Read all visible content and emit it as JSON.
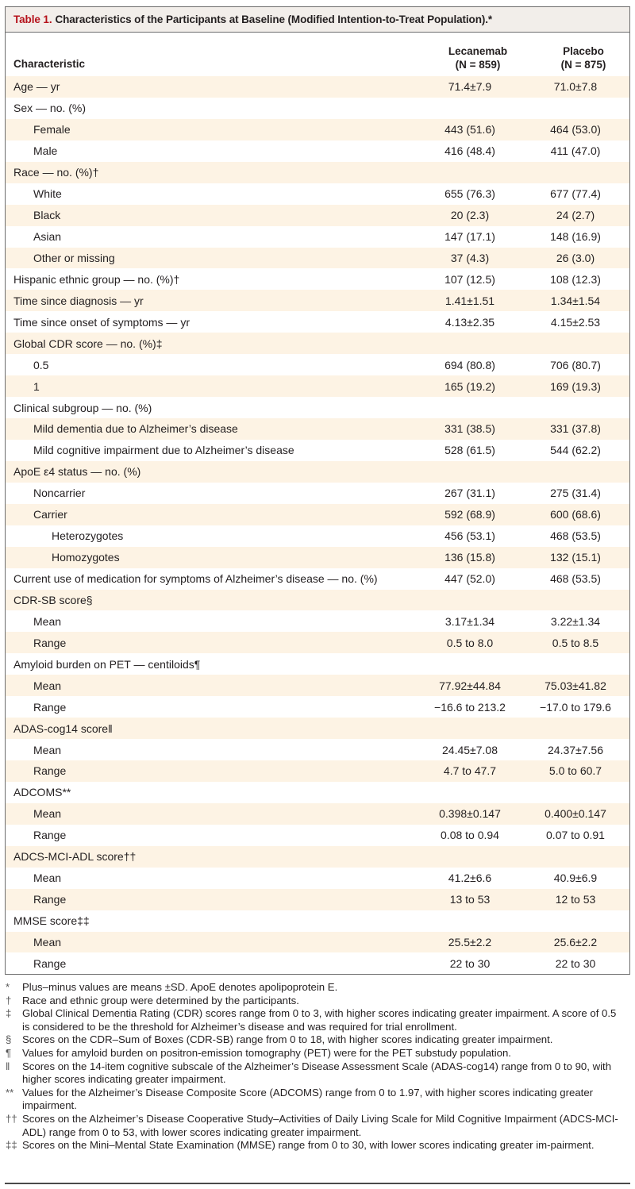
{
  "table": {
    "label": "Table 1.",
    "title": "Characteristics of the Participants at Baseline (Modified Intention-to-Treat Population).*",
    "columns": {
      "characteristic": "Characteristic",
      "lecanemab_name": "Lecanemab",
      "lecanemab_n": "(N = 859)",
      "placebo_name": "Placebo",
      "placebo_n": "(N = 875)"
    },
    "rows": [
      {
        "label": "Age — yr",
        "indent": 0,
        "lecanemab": "71.4±7.9",
        "placebo": "71.0±7.8"
      },
      {
        "label": "Sex — no. (%)",
        "indent": 0,
        "lecanemab": "",
        "placebo": ""
      },
      {
        "label": "Female",
        "indent": 1,
        "lecanemab": "443 (51.6)",
        "placebo": "464 (53.0)"
      },
      {
        "label": "Male",
        "indent": 1,
        "lecanemab": "416 (48.4)",
        "placebo": "411 (47.0)"
      },
      {
        "label": "Race — no. (%)†",
        "indent": 0,
        "lecanemab": "",
        "placebo": ""
      },
      {
        "label": "White",
        "indent": 1,
        "lecanemab": "655 (76.3)",
        "placebo": "677 (77.4)"
      },
      {
        "label": "Black",
        "indent": 1,
        "lecanemab": "20 (2.3)",
        "placebo": "24 (2.7)"
      },
      {
        "label": "Asian",
        "indent": 1,
        "lecanemab": "147 (17.1)",
        "placebo": "148 (16.9)"
      },
      {
        "label": "Other or missing",
        "indent": 1,
        "lecanemab": "37 (4.3)",
        "placebo": "26 (3.0)"
      },
      {
        "label": "Hispanic ethnic group — no. (%)†",
        "indent": 0,
        "lecanemab": "107 (12.5)",
        "placebo": "108 (12.3)"
      },
      {
        "label": "Time since diagnosis — yr",
        "indent": 0,
        "lecanemab": "1.41±1.51",
        "placebo": "1.34±1.54"
      },
      {
        "label": "Time since onset of symptoms — yr",
        "indent": 0,
        "lecanemab": "4.13±2.35",
        "placebo": "4.15±2.53"
      },
      {
        "label": "Global CDR score — no. (%)‡",
        "indent": 0,
        "lecanemab": "",
        "placebo": ""
      },
      {
        "label": "0.5",
        "indent": 1,
        "lecanemab": "694 (80.8)",
        "placebo": "706 (80.7)"
      },
      {
        "label": "1",
        "indent": 1,
        "lecanemab": "165 (19.2)",
        "placebo": "169 (19.3)"
      },
      {
        "label": "Clinical subgroup — no. (%)",
        "indent": 0,
        "lecanemab": "",
        "placebo": ""
      },
      {
        "label": "Mild dementia due to Alzheimer’s disease",
        "indent": 1,
        "lecanemab": "331 (38.5)",
        "placebo": "331 (37.8)"
      },
      {
        "label": "Mild cognitive impairment due to Alzheimer’s disease",
        "indent": 1,
        "lecanemab": "528 (61.5)",
        "placebo": "544 (62.2)"
      },
      {
        "label": "ApoE ε4 status — no. (%)",
        "indent": 0,
        "lecanemab": "",
        "placebo": ""
      },
      {
        "label": "Noncarrier",
        "indent": 1,
        "lecanemab": "267 (31.1)",
        "placebo": "275 (31.4)"
      },
      {
        "label": "Carrier",
        "indent": 1,
        "lecanemab": "592 (68.9)",
        "placebo": "600 (68.6)"
      },
      {
        "label": "Heterozygotes",
        "indent": 2,
        "lecanemab": "456 (53.1)",
        "placebo": "468 (53.5)"
      },
      {
        "label": "Homozygotes",
        "indent": 2,
        "lecanemab": "136 (15.8)",
        "placebo": "132 (15.1)"
      },
      {
        "label": "Current use of medication for symptoms of Alzheimer’s disease — no. (%)",
        "indent": 0,
        "lecanemab": "447 (52.0)",
        "placebo": "468 (53.5)"
      },
      {
        "label": "CDR-SB score§",
        "indent": 0,
        "lecanemab": "",
        "placebo": ""
      },
      {
        "label": "Mean",
        "indent": 1,
        "lecanemab": "3.17±1.34",
        "placebo": "3.22±1.34"
      },
      {
        "label": "Range",
        "indent": 1,
        "lecanemab": "0.5 to 8.0",
        "placebo": "0.5 to 8.5"
      },
      {
        "label": "Amyloid burden on PET — centiloids¶",
        "indent": 0,
        "lecanemab": "",
        "placebo": ""
      },
      {
        "label": "Mean",
        "indent": 1,
        "lecanemab": "77.92±44.84",
        "placebo": "75.03±41.82"
      },
      {
        "label": "Range",
        "indent": 1,
        "lecanemab": "−16.6 to 213.2",
        "placebo": "−17.0 to 179.6"
      },
      {
        "label": "ADAS-cog14 score‖",
        "indent": 0,
        "lecanemab": "",
        "placebo": ""
      },
      {
        "label": "Mean",
        "indent": 1,
        "lecanemab": "24.45±7.08",
        "placebo": "24.37±7.56"
      },
      {
        "label": "Range",
        "indent": 1,
        "lecanemab": "4.7 to 47.7",
        "placebo": "5.0 to 60.7"
      },
      {
        "label": "ADCOMS**",
        "indent": 0,
        "lecanemab": "",
        "placebo": ""
      },
      {
        "label": "Mean",
        "indent": 1,
        "lecanemab": "0.398±0.147",
        "placebo": "0.400±0.147"
      },
      {
        "label": "Range",
        "indent": 1,
        "lecanemab": "0.08 to 0.94",
        "placebo": "0.07 to 0.91"
      },
      {
        "label": "ADCS-MCI-ADL score††",
        "indent": 0,
        "lecanemab": "",
        "placebo": ""
      },
      {
        "label": "Mean",
        "indent": 1,
        "lecanemab": "41.2±6.6",
        "placebo": "40.9±6.9"
      },
      {
        "label": "Range",
        "indent": 1,
        "lecanemab": "13 to 53",
        "placebo": "12 to 53"
      },
      {
        "label": "MMSE score‡‡",
        "indent": 0,
        "lecanemab": "",
        "placebo": ""
      },
      {
        "label": "Mean",
        "indent": 1,
        "lecanemab": "25.5±2.2",
        "placebo": "25.6±2.2"
      },
      {
        "label": "Range",
        "indent": 1,
        "lecanemab": "22 to 30",
        "placebo": "22 to 30"
      }
    ]
  },
  "footnotes": [
    {
      "symbol": "*",
      "text": "Plus–minus values are means ±SD. ApoE denotes apolipoprotein E."
    },
    {
      "symbol": "†",
      "text": "Race and ethnic group were determined by the participants."
    },
    {
      "symbol": "‡",
      "text": "Global Clinical Dementia Rating (CDR) scores range from 0 to 3, with higher scores indicating greater impairment. A score of 0.5 is considered to be the threshold for Alzheimer’s disease and was required for trial enrollment."
    },
    {
      "symbol": "§",
      "text": "Scores on the CDR–Sum of Boxes (CDR-SB) range from 0 to 18, with higher scores indicating greater impairment."
    },
    {
      "symbol": "¶",
      "text": "Values for amyloid burden on positron-emission tomography (PET) were for the PET substudy population."
    },
    {
      "symbol": "‖",
      "text": "Scores on the 14-item cognitive subscale of the Alzheimer’s Disease Assessment Scale (ADAS-cog14) range from 0 to 90, with higher scores indicating greater impairment."
    },
    {
      "symbol": "**",
      "text": "Values for the Alzheimer’s Disease Composite Score (ADCOMS) range from 0 to 1.97, with higher scores indicating greater impairment."
    },
    {
      "symbol": "††",
      "text": "Scores on the Alzheimer’s Disease Cooperative Study–Activities of Daily Living Scale for Mild Cognitive Impairment (ADCS-MCI-ADL) range from 0 to 53, with lower scores indicating greater impairment."
    },
    {
      "symbol": "‡‡",
      "text": "Scores on the Mini–Mental State Examination (MMSE) range from 0 to 30, with lower scores indicating greater im-pairment."
    }
  ],
  "colors": {
    "title_label": "#b5121b",
    "title_band": "#f2eeea",
    "row_cream": "#fdf3e4",
    "row_white": "#ffffff",
    "border": "#6d6d6d"
  }
}
